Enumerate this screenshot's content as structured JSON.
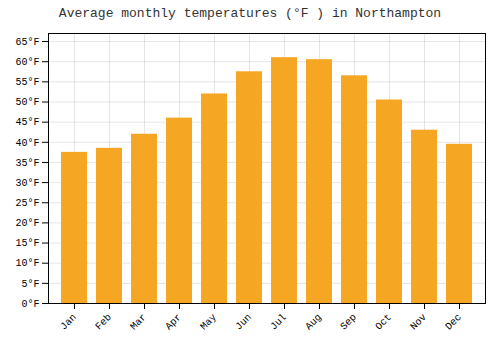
{
  "chart_data": {
    "type": "bar",
    "title": "Average monthly temperatures (°F ) in Northampton",
    "categories": [
      "Jan",
      "Feb",
      "Mar",
      "Apr",
      "May",
      "Jun",
      "Jul",
      "Aug",
      "Sep",
      "Oct",
      "Nov",
      "Dec"
    ],
    "values": [
      37.5,
      38.5,
      42.0,
      46.0,
      52.0,
      57.5,
      61.0,
      60.5,
      56.5,
      50.5,
      43.0,
      39.5
    ],
    "color": "#F5A623",
    "ylim": [
      0,
      67
    ],
    "yticks": [
      {
        "value": 0,
        "label": "0°F"
      },
      {
        "value": 5,
        "label": "5°F"
      },
      {
        "value": 10,
        "label": "10°F"
      },
      {
        "value": 15,
        "label": "15°F"
      },
      {
        "value": 20,
        "label": "20°F"
      },
      {
        "value": 25,
        "label": "25°F"
      },
      {
        "value": 30,
        "label": "30°F"
      },
      {
        "value": 35,
        "label": "35°F"
      },
      {
        "value": 40,
        "label": "40°F"
      },
      {
        "value": 45,
        "label": "45°F"
      },
      {
        "value": 50,
        "label": "50°F"
      },
      {
        "value": 55,
        "label": "55°F"
      },
      {
        "value": 60,
        "label": "60°F"
      },
      {
        "value": 65,
        "label": "65°F"
      }
    ],
    "grid": true
  }
}
